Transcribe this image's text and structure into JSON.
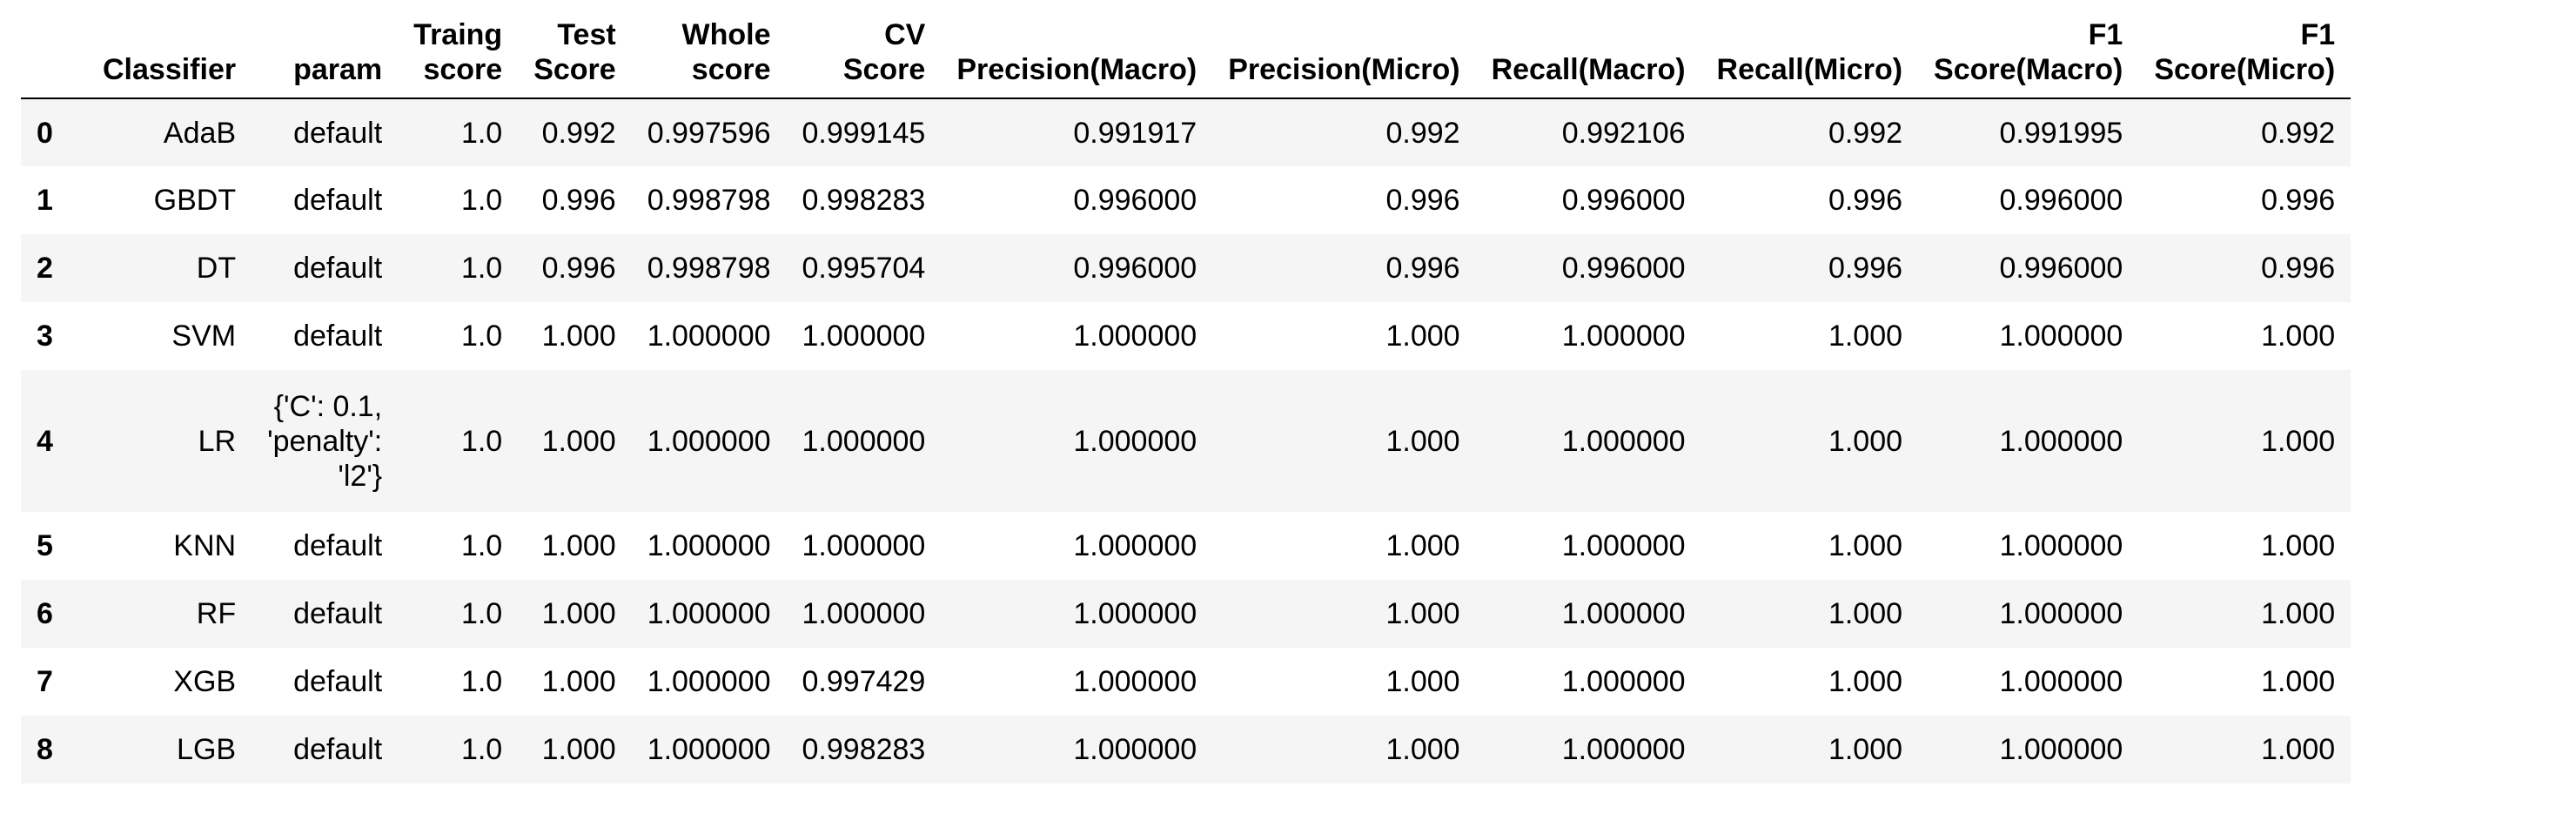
{
  "table": {
    "columns": [
      {
        "key": "classifier",
        "lines": [
          "Classifier"
        ]
      },
      {
        "key": "param",
        "lines": [
          "param"
        ]
      },
      {
        "key": "training_score",
        "lines": [
          "Traing",
          "score"
        ]
      },
      {
        "key": "test_score",
        "lines": [
          "Test",
          "Score"
        ]
      },
      {
        "key": "whole_score",
        "lines": [
          "Whole",
          "score"
        ]
      },
      {
        "key": "cv_score",
        "lines": [
          "CV",
          "Score"
        ]
      },
      {
        "key": "precision_macro",
        "lines": [
          "Precision(Macro)"
        ]
      },
      {
        "key": "precision_micro",
        "lines": [
          "Precision(Micro)"
        ]
      },
      {
        "key": "recall_macro",
        "lines": [
          "Recall(Macro)"
        ]
      },
      {
        "key": "recall_micro",
        "lines": [
          "Recall(Micro)"
        ]
      },
      {
        "key": "f1_macro",
        "lines": [
          "F1",
          "Score(Macro)"
        ]
      },
      {
        "key": "f1_micro",
        "lines": [
          "F1",
          "Score(Micro)"
        ]
      }
    ],
    "rows": [
      {
        "index": "0",
        "classifier": "AdaB",
        "param": [
          "default"
        ],
        "training_score": "1.0",
        "test_score": "0.992",
        "whole_score": "0.997596",
        "cv_score": "0.999145",
        "precision_macro": "0.991917",
        "precision_micro": "0.992",
        "recall_macro": "0.992106",
        "recall_micro": "0.992",
        "f1_macro": "0.991995",
        "f1_micro": "0.992"
      },
      {
        "index": "1",
        "classifier": "GBDT",
        "param": [
          "default"
        ],
        "training_score": "1.0",
        "test_score": "0.996",
        "whole_score": "0.998798",
        "cv_score": "0.998283",
        "precision_macro": "0.996000",
        "precision_micro": "0.996",
        "recall_macro": "0.996000",
        "recall_micro": "0.996",
        "f1_macro": "0.996000",
        "f1_micro": "0.996"
      },
      {
        "index": "2",
        "classifier": "DT",
        "param": [
          "default"
        ],
        "training_score": "1.0",
        "test_score": "0.996",
        "whole_score": "0.998798",
        "cv_score": "0.995704",
        "precision_macro": "0.996000",
        "precision_micro": "0.996",
        "recall_macro": "0.996000",
        "recall_micro": "0.996",
        "f1_macro": "0.996000",
        "f1_micro": "0.996"
      },
      {
        "index": "3",
        "classifier": "SVM",
        "param": [
          "default"
        ],
        "training_score": "1.0",
        "test_score": "1.000",
        "whole_score": "1.000000",
        "cv_score": "1.000000",
        "precision_macro": "1.000000",
        "precision_micro": "1.000",
        "recall_macro": "1.000000",
        "recall_micro": "1.000",
        "f1_macro": "1.000000",
        "f1_micro": "1.000"
      },
      {
        "index": "4",
        "classifier": "LR",
        "param": [
          "{'C': 0.1,",
          "'penalty':",
          "'l2'}"
        ],
        "training_score": "1.0",
        "test_score": "1.000",
        "whole_score": "1.000000",
        "cv_score": "1.000000",
        "precision_macro": "1.000000",
        "precision_micro": "1.000",
        "recall_macro": "1.000000",
        "recall_micro": "1.000",
        "f1_macro": "1.000000",
        "f1_micro": "1.000"
      },
      {
        "index": "5",
        "classifier": "KNN",
        "param": [
          "default"
        ],
        "training_score": "1.0",
        "test_score": "1.000",
        "whole_score": "1.000000",
        "cv_score": "1.000000",
        "precision_macro": "1.000000",
        "precision_micro": "1.000",
        "recall_macro": "1.000000",
        "recall_micro": "1.000",
        "f1_macro": "1.000000",
        "f1_micro": "1.000"
      },
      {
        "index": "6",
        "classifier": "RF",
        "param": [
          "default"
        ],
        "training_score": "1.0",
        "test_score": "1.000",
        "whole_score": "1.000000",
        "cv_score": "1.000000",
        "precision_macro": "1.000000",
        "precision_micro": "1.000",
        "recall_macro": "1.000000",
        "recall_micro": "1.000",
        "f1_macro": "1.000000",
        "f1_micro": "1.000"
      },
      {
        "index": "7",
        "classifier": "XGB",
        "param": [
          "default"
        ],
        "training_score": "1.0",
        "test_score": "1.000",
        "whole_score": "1.000000",
        "cv_score": "0.997429",
        "precision_macro": "1.000000",
        "precision_micro": "1.000",
        "recall_macro": "1.000000",
        "recall_micro": "1.000",
        "f1_macro": "1.000000",
        "f1_micro": "1.000"
      },
      {
        "index": "8",
        "classifier": "LGB",
        "param": [
          "default"
        ],
        "training_score": "1.0",
        "test_score": "1.000",
        "whole_score": "1.000000",
        "cv_score": "0.998283",
        "precision_macro": "1.000000",
        "precision_micro": "1.000",
        "recall_macro": "1.000000",
        "recall_micro": "1.000",
        "f1_macro": "1.000000",
        "f1_micro": "1.000"
      }
    ]
  },
  "colors": {
    "odd_row": "#f5f5f5",
    "even_row": "#ffffff",
    "header_rule": "#000000",
    "text": "#000000"
  }
}
